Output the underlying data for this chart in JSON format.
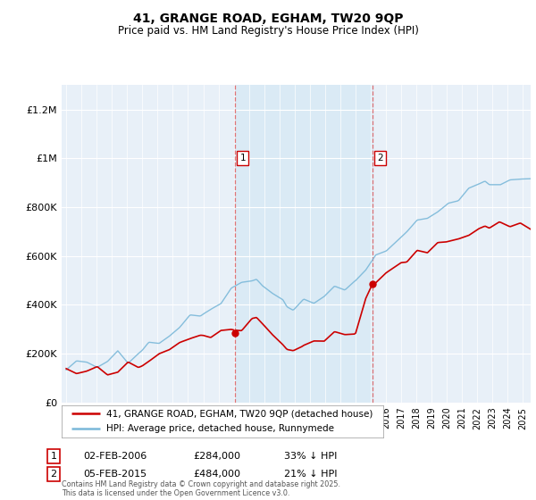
{
  "title": "41, GRANGE ROAD, EGHAM, TW20 9QP",
  "subtitle": "Price paid vs. HM Land Registry's House Price Index (HPI)",
  "footer": "Contains HM Land Registry data © Crown copyright and database right 2025.\nThis data is licensed under the Open Government Licence v3.0.",
  "legend_line1": "41, GRANGE ROAD, EGHAM, TW20 9QP (detached house)",
  "legend_line2": "HPI: Average price, detached house, Runnymede",
  "sale1_label": "1",
  "sale1_date": "02-FEB-2006",
  "sale1_price": "£284,000",
  "sale1_hpi": "33% ↓ HPI",
  "sale2_label": "2",
  "sale2_date": "05-FEB-2015",
  "sale2_price": "£484,000",
  "sale2_hpi": "21% ↓ HPI",
  "hpi_color": "#7ab8d9",
  "price_color": "#cc0000",
  "vline_color": "#e06060",
  "highlight_color": "#daeaf5",
  "plot_bg": "#e8f0f8",
  "grid_color": "#ffffff",
  "ylim": [
    0,
    1300000
  ],
  "yticks": [
    0,
    200000,
    400000,
    600000,
    800000,
    1000000,
    1200000
  ],
  "ytick_labels": [
    "£0",
    "£200K",
    "£400K",
    "£600K",
    "£800K",
    "£1M",
    "£1.2M"
  ],
  "sale1_year": 2006.1,
  "sale2_year": 2015.1,
  "sale1_price_val": 284000,
  "sale2_price_val": 484000,
  "xmin": 1995.0,
  "xmax": 2025.5
}
